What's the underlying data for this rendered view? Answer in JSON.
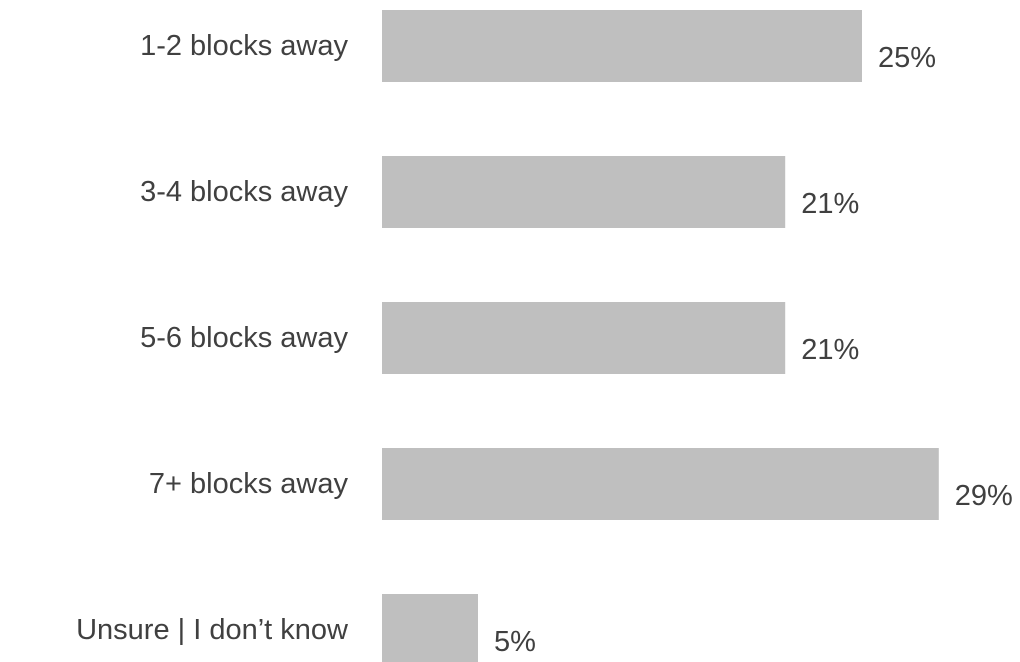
{
  "chart_data": {
    "type": "bar",
    "orientation": "horizontal",
    "categories": [
      "1-2 blocks away",
      "3-4 blocks away",
      "5-6 blocks away",
      "7+ blocks away",
      "Unsure | I don’t know"
    ],
    "values": [
      25,
      21,
      21,
      29,
      5
    ],
    "value_labels": [
      "25%",
      "21%",
      "21%",
      "29%",
      "5%"
    ],
    "unit": "%",
    "bar_color": "#bfbfbf",
    "text_color": "#404040",
    "grid": false,
    "legend": "none"
  }
}
